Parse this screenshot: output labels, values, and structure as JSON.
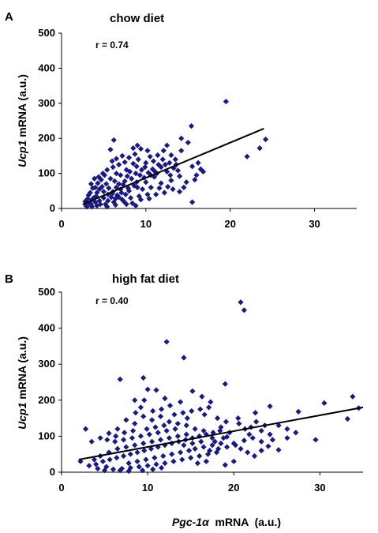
{
  "chart_data": [
    {
      "panel": "A",
      "type": "scatter",
      "title": "chow diet",
      "annotation": "r = 0.74",
      "ylabel_italic": "Ucp1",
      "ylabel_rest": " mRNA (a.u.)",
      "xlim": [
        0,
        35
      ],
      "ylim": [
        0,
        500
      ],
      "xticks": [
        0,
        10,
        20,
        30
      ],
      "yticks": [
        0,
        100,
        200,
        300,
        400,
        500
      ],
      "marker_color": "#1a1a80",
      "fit_line": {
        "x": [
          2.5,
          24
        ],
        "y": [
          12,
          228
        ]
      },
      "points": [
        [
          19.5,
          305
        ],
        [
          24.2,
          197
        ],
        [
          23.5,
          172
        ],
        [
          22,
          148
        ],
        [
          6.2,
          195
        ],
        [
          5.8,
          168
        ],
        [
          9,
          180
        ],
        [
          8.5,
          172
        ],
        [
          12.5,
          180
        ],
        [
          14.2,
          200
        ],
        [
          15.4,
          235
        ],
        [
          15,
          188
        ],
        [
          14.2,
          165
        ],
        [
          13.5,
          140
        ],
        [
          15.5,
          120
        ],
        [
          16.5,
          112
        ],
        [
          16,
          95
        ],
        [
          15.5,
          18
        ],
        [
          13,
          152
        ],
        [
          12,
          140
        ],
        [
          11.5,
          125
        ],
        [
          10.5,
          148
        ],
        [
          10,
          130
        ],
        [
          9.5,
          110
        ],
        [
          8.5,
          128
        ],
        [
          8,
          145
        ],
        [
          7.5,
          132
        ],
        [
          7,
          95
        ],
        [
          6.5,
          100
        ],
        [
          11,
          90
        ],
        [
          11.8,
          72
        ],
        [
          12.5,
          105
        ],
        [
          13,
          80
        ],
        [
          14,
          92
        ],
        [
          14.5,
          60
        ],
        [
          10,
          75
        ],
        [
          9,
          60
        ],
        [
          8,
          50
        ],
        [
          7.5,
          78
        ],
        [
          7,
          55
        ],
        [
          6.5,
          60
        ],
        [
          6,
          42
        ],
        [
          5.5,
          40
        ],
        [
          5,
          30
        ],
        [
          4.5,
          22
        ],
        [
          4,
          18
        ],
        [
          3.5,
          12
        ],
        [
          3,
          5
        ],
        [
          2.8,
          20
        ],
        [
          3.2,
          38
        ],
        [
          3.8,
          30
        ],
        [
          4.2,
          45
        ],
        [
          4.8,
          62
        ],
        [
          5.3,
          70
        ],
        [
          5.8,
          85
        ],
        [
          6.3,
          78
        ],
        [
          6.8,
          70
        ],
        [
          7.3,
          68
        ],
        [
          7.8,
          92
        ],
        [
          8.3,
          85
        ],
        [
          8.8,
          100
        ],
        [
          9.3,
          95
        ],
        [
          9.8,
          88
        ],
        [
          10.3,
          102
        ],
        [
          10.8,
          112
        ],
        [
          11.3,
          100
        ],
        [
          11.8,
          118
        ],
        [
          12.3,
          125
        ],
        [
          12.8,
          130
        ],
        [
          13.3,
          115
        ],
        [
          13.8,
          108
        ],
        [
          4.2,
          8
        ],
        [
          5.2,
          12
        ],
        [
          6.2,
          18
        ],
        [
          7.2,
          25
        ],
        [
          8.2,
          30
        ],
        [
          9.2,
          35
        ],
        [
          10.2,
          40
        ],
        [
          4.5,
          55
        ],
        [
          5,
          48
        ],
        [
          3.6,
          25
        ],
        [
          3.4,
          45
        ],
        [
          2.9,
          8
        ],
        [
          3.3,
          15
        ],
        [
          5.5,
          22
        ],
        [
          6.8,
          32
        ],
        [
          7.6,
          40
        ],
        [
          8.6,
          65
        ],
        [
          9.6,
          55
        ],
        [
          10.6,
          60
        ],
        [
          11.6,
          58
        ],
        [
          12.6,
          62
        ],
        [
          3.7,
          58
        ],
        [
          4.3,
          72
        ],
        [
          4.7,
          82
        ],
        [
          5.1,
          95
        ],
        [
          5.6,
          58
        ],
        [
          6.1,
          48
        ],
        [
          6.6,
          38
        ],
        [
          7.1,
          45
        ],
        [
          7.9,
          58
        ],
        [
          8.9,
          75
        ],
        [
          9.9,
          118
        ],
        [
          10.9,
          135
        ],
        [
          11.4,
          152
        ],
        [
          12.1,
          165
        ],
        [
          10.2,
          165
        ],
        [
          9.4,
          170
        ],
        [
          8.7,
          155
        ],
        [
          7.2,
          150
        ],
        [
          6.8,
          125
        ],
        [
          6.1,
          118
        ],
        [
          5.4,
          110
        ],
        [
          4.9,
          100
        ],
        [
          4.4,
          90
        ],
        [
          3.9,
          85
        ],
        [
          3.5,
          70
        ],
        [
          5.9,
          32
        ],
        [
          6.4,
          28
        ],
        [
          7.4,
          20
        ],
        [
          8.4,
          15
        ],
        [
          9.4,
          25
        ],
        [
          10.4,
          28
        ],
        [
          11.2,
          40
        ],
        [
          12.2,
          45
        ],
        [
          13.2,
          55
        ],
        [
          14,
          48
        ],
        [
          14.8,
          75
        ],
        [
          15.8,
          82
        ],
        [
          16.2,
          130
        ],
        [
          16.8,
          105
        ],
        [
          3.1,
          28
        ],
        [
          3.6,
          5
        ],
        [
          4.1,
          35
        ],
        [
          4.6,
          12
        ],
        [
          5.4,
          5
        ],
        [
          6.4,
          10
        ],
        [
          7.7,
          12
        ],
        [
          8.8,
          8
        ],
        [
          4,
          60
        ],
        [
          6,
          135
        ],
        [
          6.5,
          142
        ],
        [
          7.7,
          110
        ],
        [
          8.1,
          105
        ],
        [
          8.9,
          120
        ],
        [
          9.1,
          140
        ],
        [
          10.6,
          95
        ],
        [
          11.1,
          105
        ],
        [
          12.9,
          95
        ],
        [
          13.6,
          125
        ]
      ]
    },
    {
      "panel": "B",
      "type": "scatter",
      "title": "high fat diet",
      "annotation": "r = 0.40",
      "ylabel_italic": "Ucp1",
      "ylabel_rest": " mRNA (a.u.)",
      "xlabel_italic": "Pgc-1α",
      "xlabel_rest": "  mRNA  (a.u.)",
      "xlim": [
        0,
        35
      ],
      "ylim": [
        0,
        500
      ],
      "xticks": [
        0,
        10,
        20,
        30
      ],
      "yticks": [
        0,
        100,
        200,
        300,
        400,
        500
      ],
      "marker_color": "#1a1a80",
      "fit_line": {
        "x": [
          2,
          35
        ],
        "y": [
          35,
          180
        ]
      },
      "points": [
        [
          20.8,
          472
        ],
        [
          21.2,
          450
        ],
        [
          12.2,
          362
        ],
        [
          14.2,
          318
        ],
        [
          19,
          245
        ],
        [
          15.2,
          225
        ],
        [
          16.3,
          210
        ],
        [
          17.3,
          195
        ],
        [
          13.8,
          195
        ],
        [
          9.5,
          262
        ],
        [
          6.8,
          258
        ],
        [
          10,
          230
        ],
        [
          11,
          228
        ],
        [
          12,
          205
        ],
        [
          8.5,
          200
        ],
        [
          9.2,
          180
        ],
        [
          33.8,
          210
        ],
        [
          30.5,
          192
        ],
        [
          24.2,
          183
        ],
        [
          22.5,
          165
        ],
        [
          27.5,
          168
        ],
        [
          34.5,
          178
        ],
        [
          33.2,
          148
        ],
        [
          29.5,
          90
        ],
        [
          27.2,
          110
        ],
        [
          26.2,
          95
        ],
        [
          25.2,
          62
        ],
        [
          24.5,
          90
        ],
        [
          23.2,
          115
        ],
        [
          22,
          125
        ],
        [
          21.3,
          120
        ],
        [
          20.5,
          150
        ],
        [
          19.5,
          110
        ],
        [
          18.5,
          125
        ],
        [
          17.5,
          95
        ],
        [
          16.5,
          115
        ],
        [
          15.5,
          120
        ],
        [
          14.5,
          130
        ],
        [
          13.5,
          135
        ],
        [
          12.5,
          140
        ],
        [
          11.5,
          155
        ],
        [
          10.5,
          145
        ],
        [
          9.5,
          155
        ],
        [
          8.5,
          135
        ],
        [
          7.5,
          145
        ],
        [
          6.5,
          120
        ],
        [
          5.5,
          108
        ],
        [
          4.5,
          95
        ],
        [
          3.5,
          85
        ],
        [
          2.8,
          120
        ],
        [
          2.2,
          30
        ],
        [
          3.2,
          18
        ],
        [
          4,
          22
        ],
        [
          4.8,
          30
        ],
        [
          5.6,
          35
        ],
        [
          6.4,
          40
        ],
        [
          7.2,
          45
        ],
        [
          8,
          50
        ],
        [
          8.8,
          55
        ],
        [
          9.6,
          60
        ],
        [
          10.4,
          65
        ],
        [
          11.2,
          70
        ],
        [
          12,
          75
        ],
        [
          12.8,
          80
        ],
        [
          13.6,
          85
        ],
        [
          14.4,
          90
        ],
        [
          15.2,
          95
        ],
        [
          16,
          100
        ],
        [
          16.8,
          105
        ],
        [
          17.6,
          110
        ],
        [
          18.4,
          115
        ],
        [
          19.2,
          98
        ],
        [
          20,
          80
        ],
        [
          20.8,
          65
        ],
        [
          21.6,
          55
        ],
        [
          22.4,
          45
        ],
        [
          23.2,
          60
        ],
        [
          24,
          72
        ],
        [
          5,
          5
        ],
        [
          6,
          8
        ],
        [
          7,
          10
        ],
        [
          8,
          12
        ],
        [
          9,
          15
        ],
        [
          10,
          18
        ],
        [
          11,
          22
        ],
        [
          12,
          25
        ],
        [
          13,
          30
        ],
        [
          14,
          35
        ],
        [
          15,
          40
        ],
        [
          16,
          45
        ],
        [
          17,
          50
        ],
        [
          18,
          55
        ],
        [
          19,
          20
        ],
        [
          20,
          30
        ],
        [
          6.5,
          65
        ],
        [
          7.5,
          70
        ],
        [
          8.5,
          75
        ],
        [
          9.5,
          80
        ],
        [
          10.5,
          85
        ],
        [
          11.5,
          90
        ],
        [
          12.5,
          95
        ],
        [
          13.5,
          100
        ],
        [
          14.5,
          105
        ],
        [
          15.5,
          65
        ],
        [
          16.5,
          70
        ],
        [
          17.5,
          75
        ],
        [
          18.5,
          80
        ],
        [
          5.5,
          55
        ],
        [
          4.5,
          45
        ],
        [
          3.8,
          35
        ],
        [
          6.2,
          85
        ],
        [
          7.2,
          90
        ],
        [
          8.2,
          95
        ],
        [
          9.2,
          100
        ],
        [
          10.2,
          105
        ],
        [
          11.2,
          110
        ],
        [
          12.2,
          115
        ],
        [
          13.2,
          120
        ],
        [
          14.2,
          75
        ],
        [
          15.2,
          80
        ],
        [
          16.2,
          85
        ],
        [
          17.2,
          60
        ],
        [
          18.2,
          65
        ],
        [
          19.2,
          70
        ],
        [
          20.2,
          75
        ],
        [
          21.2,
          88
        ],
        [
          22.2,
          95
        ],
        [
          23.2,
          85
        ],
        [
          24.2,
          105
        ],
        [
          25.2,
          130
        ],
        [
          26.2,
          120
        ],
        [
          7.8,
          25
        ],
        [
          8.8,
          30
        ],
        [
          9.8,
          35
        ],
        [
          10.8,
          40
        ],
        [
          11.8,
          45
        ],
        [
          12.8,
          50
        ],
        [
          13.8,
          55
        ],
        [
          14.8,
          60
        ],
        [
          15.8,
          25
        ],
        [
          16.8,
          30
        ],
        [
          6.8,
          5
        ],
        [
          7.8,
          3
        ],
        [
          9.4,
          5
        ],
        [
          10.6,
          8
        ],
        [
          11.6,
          12
        ],
        [
          5.2,
          15
        ],
        [
          4.2,
          10
        ],
        [
          9.9,
          120
        ],
        [
          10.9,
          125
        ],
        [
          11.9,
          130
        ],
        [
          8.3,
          115
        ],
        [
          7.3,
          110
        ],
        [
          6.3,
          100
        ],
        [
          5.3,
          90
        ],
        [
          13.1,
          160
        ],
        [
          14.1,
          165
        ],
        [
          15.1,
          170
        ],
        [
          16.1,
          175
        ],
        [
          17.1,
          180
        ],
        [
          18.1,
          150
        ],
        [
          19.1,
          140
        ],
        [
          12.6,
          185
        ],
        [
          11.6,
          175
        ],
        [
          10.6,
          170
        ],
        [
          9.6,
          200
        ],
        [
          8.6,
          165
        ],
        [
          20.6,
          135
        ],
        [
          22.6,
          140
        ],
        [
          23.6,
          130
        ],
        [
          21.8,
          105
        ],
        [
          18.8,
          95
        ],
        [
          17.8,
          85
        ],
        [
          16.6,
          160
        ],
        [
          14.6,
          150
        ]
      ]
    }
  ]
}
